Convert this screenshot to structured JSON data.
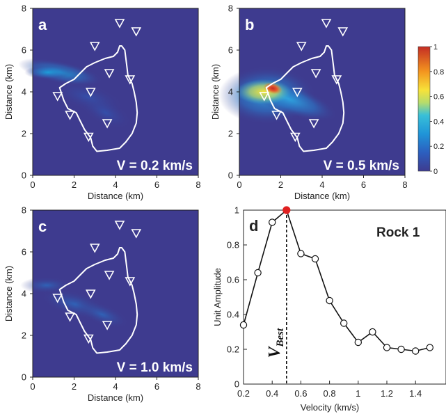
{
  "maps": [
    {
      "id": "a",
      "velocity_label": "V = 0.2 km/s",
      "ylabel": "Distance (km)",
      "xlabel": "Distance (km)"
    },
    {
      "id": "b",
      "velocity_label": "V = 0.5 km/s",
      "ylabel": "Distance (km)",
      "xlabel": "Distance (km)"
    },
    {
      "id": "c",
      "velocity_label": "V = 1.0 km/s",
      "ylabel": "Distance (km)",
      "xlabel": "Distance (km)"
    }
  ],
  "map_ticks": [
    "0",
    "2",
    "4",
    "6",
    "8"
  ],
  "stations": [
    {
      "x": 4.2,
      "y": 7.3
    },
    {
      "x": 5.0,
      "y": 6.9
    },
    {
      "x": 3.0,
      "y": 6.2
    },
    {
      "x": 3.7,
      "y": 4.9
    },
    {
      "x": 4.7,
      "y": 4.6
    },
    {
      "x": 2.8,
      "y": 4.0
    },
    {
      "x": 1.2,
      "y": 3.8
    },
    {
      "x": 1.8,
      "y": 2.9
    },
    {
      "x": 3.6,
      "y": 2.5
    },
    {
      "x": 2.7,
      "y": 1.85
    }
  ],
  "outline": [
    [
      4.3,
      6.2
    ],
    [
      4.45,
      6.0
    ],
    [
      4.5,
      5.6
    ],
    [
      4.55,
      5.2
    ],
    [
      4.6,
      4.8
    ],
    [
      4.8,
      4.4
    ],
    [
      4.9,
      4.0
    ],
    [
      5.0,
      3.5
    ],
    [
      5.05,
      3.0
    ],
    [
      5.0,
      2.5
    ],
    [
      4.8,
      2.0
    ],
    [
      4.5,
      1.6
    ],
    [
      4.2,
      1.3
    ],
    [
      3.6,
      1.2
    ],
    [
      3.1,
      1.15
    ],
    [
      2.9,
      1.4
    ],
    [
      2.8,
      1.8
    ],
    [
      2.5,
      2.2
    ],
    [
      2.3,
      2.6
    ],
    [
      2.1,
      3.0
    ],
    [
      1.7,
      3.2
    ],
    [
      1.5,
      3.6
    ],
    [
      1.4,
      3.9
    ],
    [
      1.3,
      4.2
    ],
    [
      1.6,
      4.4
    ],
    [
      2.0,
      4.6
    ],
    [
      2.3,
      4.9
    ],
    [
      2.6,
      5.2
    ],
    [
      3.0,
      5.4
    ],
    [
      3.5,
      5.6
    ],
    [
      3.9,
      5.7
    ],
    [
      4.1,
      5.9
    ],
    [
      4.2,
      6.2
    ],
    [
      4.3,
      6.2
    ]
  ],
  "colorbar": {
    "min": 0,
    "max": 1,
    "ticks": [
      "0",
      "0.2",
      "0.4",
      "0.6",
      "0.8",
      "1"
    ]
  },
  "chart_data": {
    "type": "line",
    "panel": "d",
    "title": "Rock 1",
    "xlabel": "Velocity (km/s)",
    "ylabel": "Unit Amplitude",
    "xlim": [
      0.2,
      1.5
    ],
    "ylim": [
      0,
      1
    ],
    "xticks": [
      "0.2",
      "0.4",
      "0.6",
      "0.8",
      "1",
      "1.2",
      "1.4"
    ],
    "yticks": [
      "0",
      "0.2",
      "0.4",
      "0.6",
      "0.8",
      "1"
    ],
    "x": [
      0.2,
      0.3,
      0.4,
      0.5,
      0.6,
      0.7,
      0.8,
      0.9,
      1.0,
      1.1,
      1.2,
      1.3,
      1.4,
      1.5
    ],
    "values": [
      0.34,
      0.64,
      0.93,
      1.0,
      0.75,
      0.72,
      0.48,
      0.35,
      0.24,
      0.3,
      0.21,
      0.2,
      0.19,
      0.21
    ],
    "best_velocity": 0.5,
    "best_label_main": "V",
    "best_label_sub": "Best",
    "marker_color": "#e02020"
  }
}
